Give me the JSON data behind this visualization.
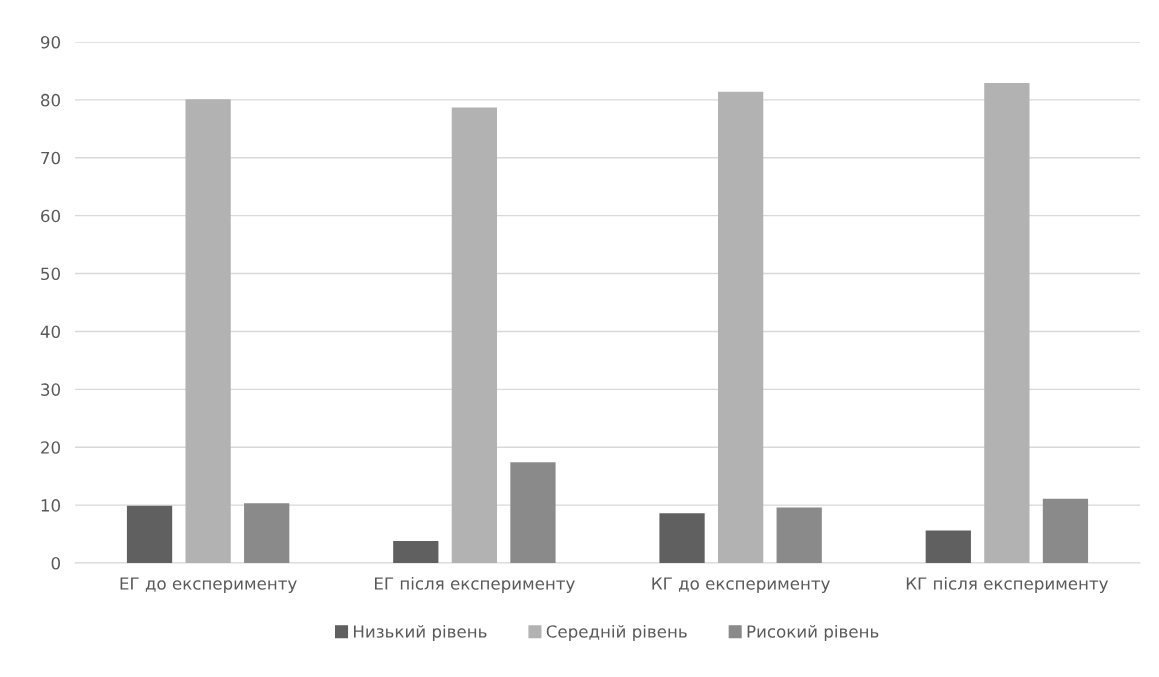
{
  "chart_data": {
    "type": "bar",
    "categories": [
      "ЕГ до експерименту",
      "ЕГ після експерименту",
      "КГ до експерименту",
      "КГ після експерименту"
    ],
    "series": [
      {
        "name": "Низький рівень",
        "color": "#606060",
        "values": [
          9.9,
          3.8,
          8.6,
          5.6
        ]
      },
      {
        "name": "Середній рівень",
        "color": "#b2b2b2",
        "values": [
          80.1,
          78.7,
          81.4,
          82.9
        ]
      },
      {
        "name": "Рисокий рівень",
        "color": "#8a8a8a",
        "values": [
          10.3,
          17.4,
          9.6,
          11.1
        ]
      }
    ],
    "ylim": [
      0,
      90
    ],
    "yticks": [
      0,
      10,
      20,
      30,
      40,
      50,
      60,
      70,
      80,
      90
    ],
    "grid": "y",
    "legend": "bottom"
  }
}
